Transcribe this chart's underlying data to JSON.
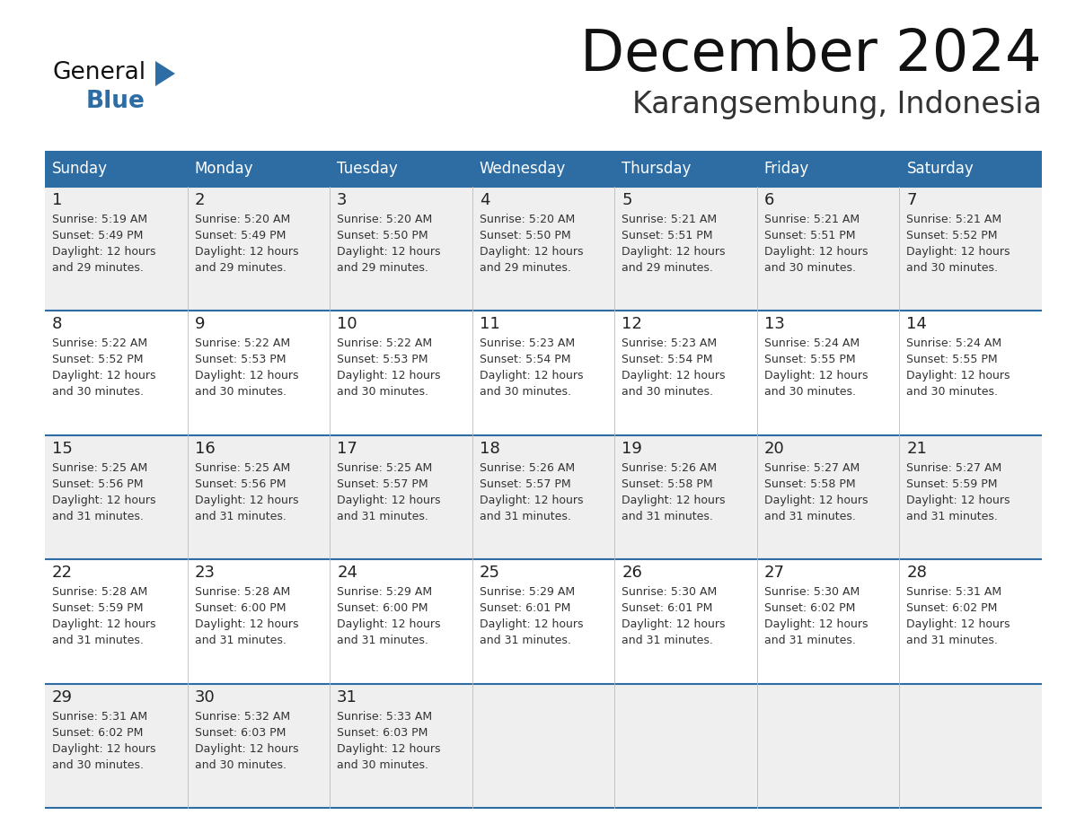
{
  "title": "December 2024",
  "subtitle": "Karangsembung, Indonesia",
  "header_bg": "#2E6DA4",
  "header_text_color": "#FFFFFF",
  "day_names": [
    "Sunday",
    "Monday",
    "Tuesday",
    "Wednesday",
    "Thursday",
    "Friday",
    "Saturday"
  ],
  "row_bg_odd": "#EFEFEF",
  "row_bg_even": "#FFFFFF",
  "cell_border_color": "#2E6DA4",
  "date_color": "#222222",
  "info_color": "#333333",
  "title_color": "#111111",
  "subtitle_color": "#333333",
  "logo_general_color": "#111111",
  "logo_blue_color": "#2E6DA4",
  "weeks": [
    {
      "days": [
        {
          "date": "1",
          "sunrise": "5:19 AM",
          "sunset": "5:49 PM",
          "daylight_hours": 12,
          "daylight_minutes": 29
        },
        {
          "date": "2",
          "sunrise": "5:20 AM",
          "sunset": "5:49 PM",
          "daylight_hours": 12,
          "daylight_minutes": 29
        },
        {
          "date": "3",
          "sunrise": "5:20 AM",
          "sunset": "5:50 PM",
          "daylight_hours": 12,
          "daylight_minutes": 29
        },
        {
          "date": "4",
          "sunrise": "5:20 AM",
          "sunset": "5:50 PM",
          "daylight_hours": 12,
          "daylight_minutes": 29
        },
        {
          "date": "5",
          "sunrise": "5:21 AM",
          "sunset": "5:51 PM",
          "daylight_hours": 12,
          "daylight_minutes": 29
        },
        {
          "date": "6",
          "sunrise": "5:21 AM",
          "sunset": "5:51 PM",
          "daylight_hours": 12,
          "daylight_minutes": 30
        },
        {
          "date": "7",
          "sunrise": "5:21 AM",
          "sunset": "5:52 PM",
          "daylight_hours": 12,
          "daylight_minutes": 30
        }
      ]
    },
    {
      "days": [
        {
          "date": "8",
          "sunrise": "5:22 AM",
          "sunset": "5:52 PM",
          "daylight_hours": 12,
          "daylight_minutes": 30
        },
        {
          "date": "9",
          "sunrise": "5:22 AM",
          "sunset": "5:53 PM",
          "daylight_hours": 12,
          "daylight_minutes": 30
        },
        {
          "date": "10",
          "sunrise": "5:22 AM",
          "sunset": "5:53 PM",
          "daylight_hours": 12,
          "daylight_minutes": 30
        },
        {
          "date": "11",
          "sunrise": "5:23 AM",
          "sunset": "5:54 PM",
          "daylight_hours": 12,
          "daylight_minutes": 30
        },
        {
          "date": "12",
          "sunrise": "5:23 AM",
          "sunset": "5:54 PM",
          "daylight_hours": 12,
          "daylight_minutes": 30
        },
        {
          "date": "13",
          "sunrise": "5:24 AM",
          "sunset": "5:55 PM",
          "daylight_hours": 12,
          "daylight_minutes": 30
        },
        {
          "date": "14",
          "sunrise": "5:24 AM",
          "sunset": "5:55 PM",
          "daylight_hours": 12,
          "daylight_minutes": 30
        }
      ]
    },
    {
      "days": [
        {
          "date": "15",
          "sunrise": "5:25 AM",
          "sunset": "5:56 PM",
          "daylight_hours": 12,
          "daylight_minutes": 31
        },
        {
          "date": "16",
          "sunrise": "5:25 AM",
          "sunset": "5:56 PM",
          "daylight_hours": 12,
          "daylight_minutes": 31
        },
        {
          "date": "17",
          "sunrise": "5:25 AM",
          "sunset": "5:57 PM",
          "daylight_hours": 12,
          "daylight_minutes": 31
        },
        {
          "date": "18",
          "sunrise": "5:26 AM",
          "sunset": "5:57 PM",
          "daylight_hours": 12,
          "daylight_minutes": 31
        },
        {
          "date": "19",
          "sunrise": "5:26 AM",
          "sunset": "5:58 PM",
          "daylight_hours": 12,
          "daylight_minutes": 31
        },
        {
          "date": "20",
          "sunrise": "5:27 AM",
          "sunset": "5:58 PM",
          "daylight_hours": 12,
          "daylight_minutes": 31
        },
        {
          "date": "21",
          "sunrise": "5:27 AM",
          "sunset": "5:59 PM",
          "daylight_hours": 12,
          "daylight_minutes": 31
        }
      ]
    },
    {
      "days": [
        {
          "date": "22",
          "sunrise": "5:28 AM",
          "sunset": "5:59 PM",
          "daylight_hours": 12,
          "daylight_minutes": 31
        },
        {
          "date": "23",
          "sunrise": "5:28 AM",
          "sunset": "6:00 PM",
          "daylight_hours": 12,
          "daylight_minutes": 31
        },
        {
          "date": "24",
          "sunrise": "5:29 AM",
          "sunset": "6:00 PM",
          "daylight_hours": 12,
          "daylight_minutes": 31
        },
        {
          "date": "25",
          "sunrise": "5:29 AM",
          "sunset": "6:01 PM",
          "daylight_hours": 12,
          "daylight_minutes": 31
        },
        {
          "date": "26",
          "sunrise": "5:30 AM",
          "sunset": "6:01 PM",
          "daylight_hours": 12,
          "daylight_minutes": 31
        },
        {
          "date": "27",
          "sunrise": "5:30 AM",
          "sunset": "6:02 PM",
          "daylight_hours": 12,
          "daylight_minutes": 31
        },
        {
          "date": "28",
          "sunrise": "5:31 AM",
          "sunset": "6:02 PM",
          "daylight_hours": 12,
          "daylight_minutes": 31
        }
      ]
    },
    {
      "days": [
        {
          "date": "29",
          "sunrise": "5:31 AM",
          "sunset": "6:02 PM",
          "daylight_hours": 12,
          "daylight_minutes": 30
        },
        {
          "date": "30",
          "sunrise": "5:32 AM",
          "sunset": "6:03 PM",
          "daylight_hours": 12,
          "daylight_minutes": 30
        },
        {
          "date": "31",
          "sunrise": "5:33 AM",
          "sunset": "6:03 PM",
          "daylight_hours": 12,
          "daylight_minutes": 30
        },
        {
          "date": "",
          "sunrise": "",
          "sunset": "",
          "daylight_hours": 0,
          "daylight_minutes": 0
        },
        {
          "date": "",
          "sunrise": "",
          "sunset": "",
          "daylight_hours": 0,
          "daylight_minutes": 0
        },
        {
          "date": "",
          "sunrise": "",
          "sunset": "",
          "daylight_hours": 0,
          "daylight_minutes": 0
        },
        {
          "date": "",
          "sunrise": "",
          "sunset": "",
          "daylight_hours": 0,
          "daylight_minutes": 0
        }
      ]
    }
  ]
}
